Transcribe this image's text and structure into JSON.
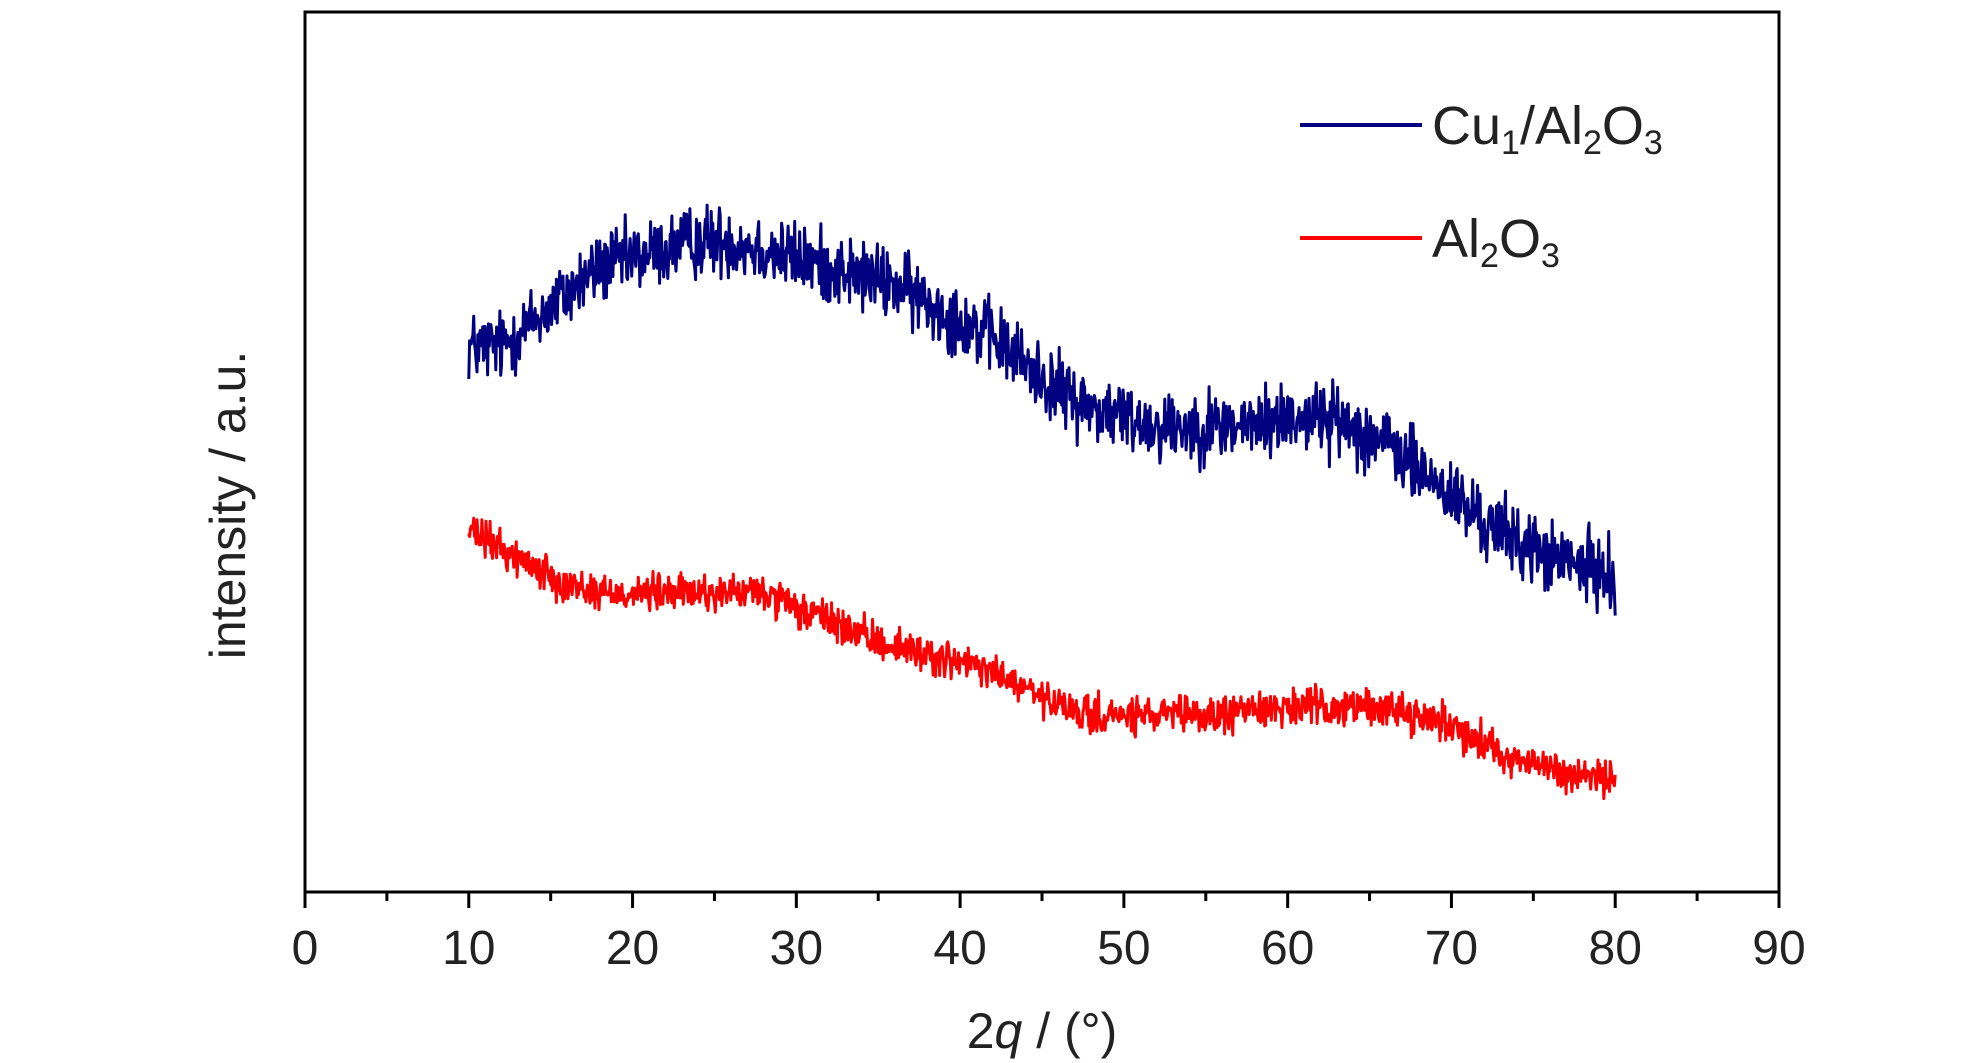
{
  "chart_data": {
    "type": "line",
    "title": "",
    "xlabel": {
      "number": "2",
      "symbol": "q",
      "unit": " / (°)"
    },
    "ylabel": "intensity / a.u.",
    "xlim": [
      0,
      90
    ],
    "ylim": [
      0,
      100
    ],
    "x_ticks": [
      0,
      10,
      20,
      30,
      40,
      50,
      60,
      70,
      80,
      90
    ],
    "x_tick_labels": [
      "0",
      "10",
      "20",
      "30",
      "40",
      "50",
      "60",
      "70",
      "80",
      "90"
    ],
    "y_ticks_shown": false,
    "grid": false,
    "legend_position": "top-right",
    "series": [
      {
        "name": "Cu1/Al2O3",
        "name_parts": [
          {
            "text": "Cu",
            "sub": false
          },
          {
            "text": "1",
            "sub": true
          },
          {
            "text": "/Al",
            "sub": false
          },
          {
            "text": "2",
            "sub": true
          },
          {
            "text": "O",
            "sub": false
          },
          {
            "text": "3",
            "sub": true
          }
        ],
        "color": "#000080",
        "x": [
          10,
          12,
          14,
          16,
          18,
          20,
          22,
          24,
          26,
          28,
          30,
          32,
          34,
          36,
          38,
          40,
          42,
          44,
          46,
          48,
          50,
          52,
          54,
          56,
          58,
          60,
          62,
          64,
          66,
          68,
          70,
          72,
          74,
          76,
          78,
          80
        ],
        "y": [
          62,
          62,
          65,
          68,
          71,
          72,
          73,
          74,
          74,
          73,
          72,
          71,
          70,
          69,
          67,
          65,
          63,
          60,
          57,
          55,
          54,
          53,
          53,
          53,
          53,
          54,
          54,
          53,
          51,
          48,
          45,
          42,
          40,
          38,
          37,
          36
        ],
        "noise_amplitude": 3.5
      },
      {
        "name": "Al2O3",
        "name_parts": [
          {
            "text": "Al",
            "sub": false
          },
          {
            "text": "2",
            "sub": true
          },
          {
            "text": "O",
            "sub": false
          },
          {
            "text": "3",
            "sub": true
          }
        ],
        "color": "#ff0000",
        "x": [
          10,
          12,
          14,
          16,
          18,
          20,
          22,
          24,
          26,
          28,
          30,
          32,
          34,
          36,
          38,
          40,
          42,
          44,
          46,
          48,
          50,
          52,
          54,
          56,
          58,
          60,
          62,
          64,
          66,
          68,
          70,
          72,
          74,
          76,
          78,
          80
        ],
        "y": [
          41,
          39,
          37,
          35,
          34,
          34,
          34,
          34,
          34,
          34,
          32,
          31,
          29,
          28,
          27,
          26,
          25,
          23,
          21,
          20,
          20,
          20,
          20,
          20,
          21,
          21,
          21,
          21,
          21,
          20,
          19,
          17,
          15,
          14,
          13,
          13
        ],
        "noise_amplitude": 1.8
      }
    ]
  }
}
